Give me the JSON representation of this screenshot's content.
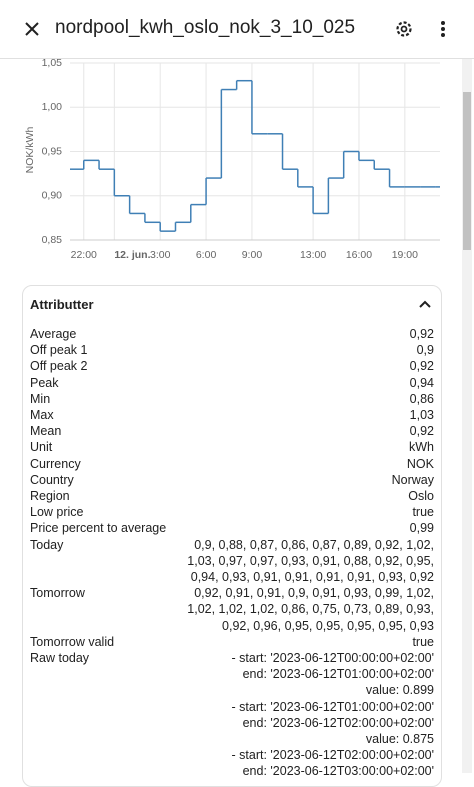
{
  "header": {
    "title": "nordpool_kwh_oslo_nok_3_10_025"
  },
  "chart_data": {
    "type": "step",
    "y_label": "NOK/kWh",
    "color": "#3f7fb5",
    "grid": true,
    "x": [
      -2.9,
      -2,
      -1,
      0,
      1,
      2,
      3,
      4,
      5,
      6,
      7,
      8,
      9,
      10,
      11,
      12,
      13,
      14,
      15,
      16,
      17,
      18,
      19,
      20,
      21
    ],
    "values": [
      0.93,
      0.94,
      0.93,
      0.9,
      0.88,
      0.87,
      0.86,
      0.87,
      0.89,
      0.92,
      1.02,
      1.03,
      0.97,
      0.97,
      0.93,
      0.91,
      0.88,
      0.92,
      0.95,
      0.94,
      0.93,
      0.91,
      0.91,
      0.91,
      0.91
    ],
    "xlim": [
      -2.9,
      21.3
    ],
    "xticks": [
      {
        "value": -2,
        "label": "22:00"
      },
      {
        "value": 0,
        "label": "12. jun."
      },
      {
        "value": 3,
        "label": "3:00"
      },
      {
        "value": 6,
        "label": "6:00"
      },
      {
        "value": 9,
        "label": "9:00"
      },
      {
        "value": 13,
        "label": "13:00"
      },
      {
        "value": 16,
        "label": "16:00"
      },
      {
        "value": 19,
        "label": "19:00"
      }
    ],
    "ylim": [
      0.85,
      1.05
    ],
    "yticks": [
      {
        "value": 0.85,
        "label": "0,85"
      },
      {
        "value": 0.9,
        "label": "0,90"
      },
      {
        "value": 0.95,
        "label": "0,95"
      },
      {
        "value": 1.0,
        "label": "1,00"
      },
      {
        "value": 1.05,
        "label": "1,05"
      }
    ]
  },
  "attributes": {
    "title": "Attributter",
    "rows": [
      {
        "key": "Average",
        "value": [
          "0,92"
        ]
      },
      {
        "key": "Off peak 1",
        "value": [
          "0,9"
        ]
      },
      {
        "key": "Off peak 2",
        "value": [
          "0,92"
        ]
      },
      {
        "key": "Peak",
        "value": [
          "0,94"
        ]
      },
      {
        "key": "Min",
        "value": [
          "0,86"
        ]
      },
      {
        "key": "Max",
        "value": [
          "1,03"
        ]
      },
      {
        "key": "Mean",
        "value": [
          "0,92"
        ]
      },
      {
        "key": "Unit",
        "value": [
          "kWh"
        ]
      },
      {
        "key": "Currency",
        "value": [
          "NOK"
        ]
      },
      {
        "key": "Country",
        "value": [
          "Norway"
        ]
      },
      {
        "key": "Region",
        "value": [
          "Oslo"
        ]
      },
      {
        "key": "Low price",
        "value": [
          "true"
        ]
      },
      {
        "key": "Price percent to average",
        "value": [
          "0,99"
        ]
      },
      {
        "key": "Today",
        "value": [
          "0,9, 0,88, 0,87, 0,86, 0,87, 0,89, 0,92, 1,02,",
          "1,03, 0,97, 0,97, 0,93, 0,91, 0,88, 0,92, 0,95,",
          "0,94, 0,93, 0,91, 0,91, 0,91, 0,91, 0,93, 0,92"
        ]
      },
      {
        "key": "Tomorrow",
        "value": [
          "0,92, 0,91, 0,91, 0,9, 0,91, 0,93, 0,99, 1,02,",
          "1,02, 1,02, 1,02, 0,86, 0,75, 0,73, 0,89, 0,93,",
          "0,92, 0,96, 0,95, 0,95, 0,95, 0,95, 0,93"
        ]
      },
      {
        "key": "Tomorrow valid",
        "value": [
          "true"
        ]
      },
      {
        "key": "Raw today",
        "value": [
          "- start: '2023-06-12T00:00:00+02:00'",
          "end: '2023-06-12T01:00:00+02:00'",
          "value: 0.899",
          "- start: '2023-06-12T01:00:00+02:00'",
          "end: '2023-06-12T02:00:00+02:00'",
          "value: 0.875",
          "- start: '2023-06-12T02:00:00+02:00'",
          "end: '2023-06-12T03:00:00+02:00'"
        ]
      }
    ]
  }
}
